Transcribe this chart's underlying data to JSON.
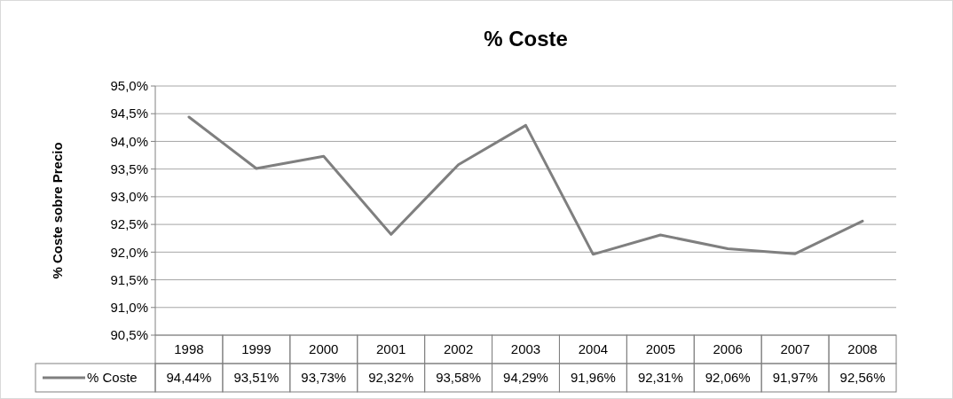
{
  "chart_data": {
    "type": "line",
    "title": "% Coste",
    "ylabel": "% Coste sobre Precio",
    "categories": [
      "1998",
      "1999",
      "2000",
      "2001",
      "2002",
      "2003",
      "2004",
      "2005",
      "2006",
      "2007",
      "2008"
    ],
    "series": [
      {
        "name": "% Coste",
        "color": "#7f7f7f",
        "values": [
          94.44,
          93.51,
          93.73,
          92.32,
          93.58,
          94.29,
          91.96,
          92.31,
          92.06,
          91.97,
          92.56
        ],
        "value_labels": [
          "94,44%",
          "93,51%",
          "93,73%",
          "92,32%",
          "93,58%",
          "94,29%",
          "91,96%",
          "92,31%",
          "92,06%",
          "91,97%",
          "92,56%"
        ]
      }
    ],
    "ylim": [
      90.5,
      95
    ],
    "yticks": [
      {
        "value": 90.5,
        "label": "90,5%"
      },
      {
        "value": 91,
        "label": "91,0%"
      },
      {
        "value": 91.5,
        "label": "91,5%"
      },
      {
        "value": 92,
        "label": "92,0%"
      },
      {
        "value": 92.5,
        "label": "92,5%"
      },
      {
        "value": 93,
        "label": "93,0%"
      },
      {
        "value": 93.5,
        "label": "93,5%"
      },
      {
        "value": 94,
        "label": "94,0%"
      },
      {
        "value": 94.5,
        "label": "94,5%"
      },
      {
        "value": 95,
        "label": "95,0%"
      }
    ],
    "grid": "y",
    "legend": "bottom",
    "marker": "none",
    "line_style": "solid"
  }
}
